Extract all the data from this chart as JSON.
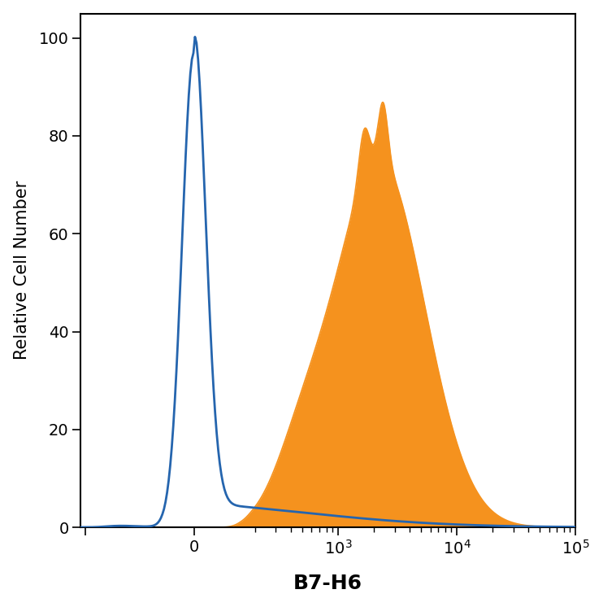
{
  "ylabel": "Relative Cell Number",
  "xlabel": "B7-H6",
  "ylim": [
    0,
    105
  ],
  "background_color": "#ffffff",
  "blue_color": "#2565ae",
  "orange_color": "#f5921e",
  "title_fontsize": 18,
  "title_fontweight": "bold",
  "ylabel_fontsize": 15,
  "xlabel_fontsize": 18,
  "xlabel_fontweight": "bold",
  "tick_fontsize": 14,
  "symlog_linthresh": 150,
  "symlog_linscale": 0.35
}
